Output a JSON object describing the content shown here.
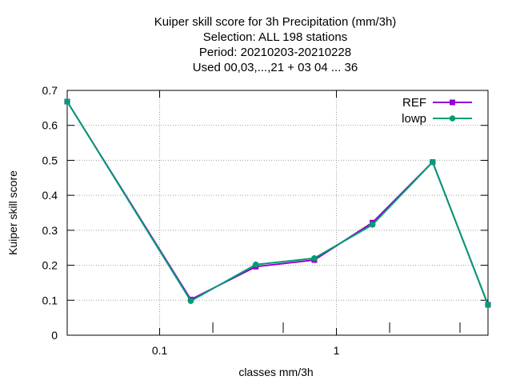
{
  "chart_data": {
    "type": "line",
    "title_lines": [
      "Kuiper skill score  for 3h Precipitation (mm/3h)",
      "Selection: ALL    198 stations",
      "Period: 20210203-20210228",
      "Used  00,03,...,21  + 03 04 ... 36"
    ],
    "xlabel": "classes mm/3h",
    "ylabel": "Kuiper skill score",
    "xscale": "log",
    "xlim": [
      0.03,
      7.2
    ],
    "ylim": [
      0,
      0.7
    ],
    "yticks": [
      0,
      0.1,
      0.2,
      0.3,
      0.4,
      0.5,
      0.6,
      0.7
    ],
    "ytick_labels": [
      "0",
      "0.1",
      "0.2",
      "0.3",
      "0.4",
      "0.5",
      "0.6",
      "0.7"
    ],
    "xticks_labeled": [
      0.1,
      1
    ],
    "xtick_labels": [
      "0.1",
      "1"
    ],
    "xticks_minor": [
      0.2,
      0.5,
      2,
      5,
      10
    ],
    "grid": true,
    "legend_position": "top-right",
    "series": [
      {
        "name": "REF",
        "color": "#9400d3",
        "marker": "square",
        "x": [
          0.03,
          0.15,
          0.35,
          0.75,
          1.6,
          3.5,
          7.2
        ],
        "y": [
          0.668,
          0.102,
          0.196,
          0.215,
          0.322,
          0.495,
          0.087
        ]
      },
      {
        "name": "lowp",
        "color": "#009e73",
        "marker": "circle",
        "x": [
          0.03,
          0.15,
          0.35,
          0.75,
          1.6,
          3.5,
          7.2
        ],
        "y": [
          0.668,
          0.098,
          0.202,
          0.22,
          0.316,
          0.495,
          0.087
        ]
      }
    ]
  }
}
